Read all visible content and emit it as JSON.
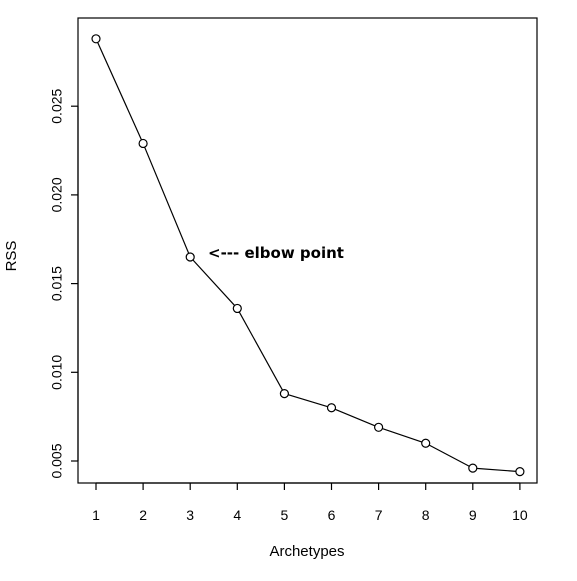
{
  "chart_data": {
    "type": "line",
    "x": [
      1,
      2,
      3,
      4,
      5,
      6,
      7,
      8,
      9,
      10
    ],
    "y": [
      0.0288,
      0.0229,
      0.0165,
      0.0136,
      0.0088,
      0.008,
      0.0069,
      0.006,
      0.0046,
      0.0044
    ],
    "xlabel": "Archetypes",
    "ylabel": "RSS",
    "xlim": [
      1,
      10
    ],
    "ylim": [
      0.004,
      0.029
    ],
    "xticks": [
      "1",
      "2",
      "3",
      "4",
      "5",
      "6",
      "7",
      "8",
      "9",
      "10"
    ],
    "yticks": [
      "0.005",
      "0.010",
      "0.015",
      "0.020",
      "0.025"
    ],
    "annotation": {
      "text": "<--- elbow point",
      "x": 3,
      "y": 0.0165
    },
    "grid": false
  }
}
